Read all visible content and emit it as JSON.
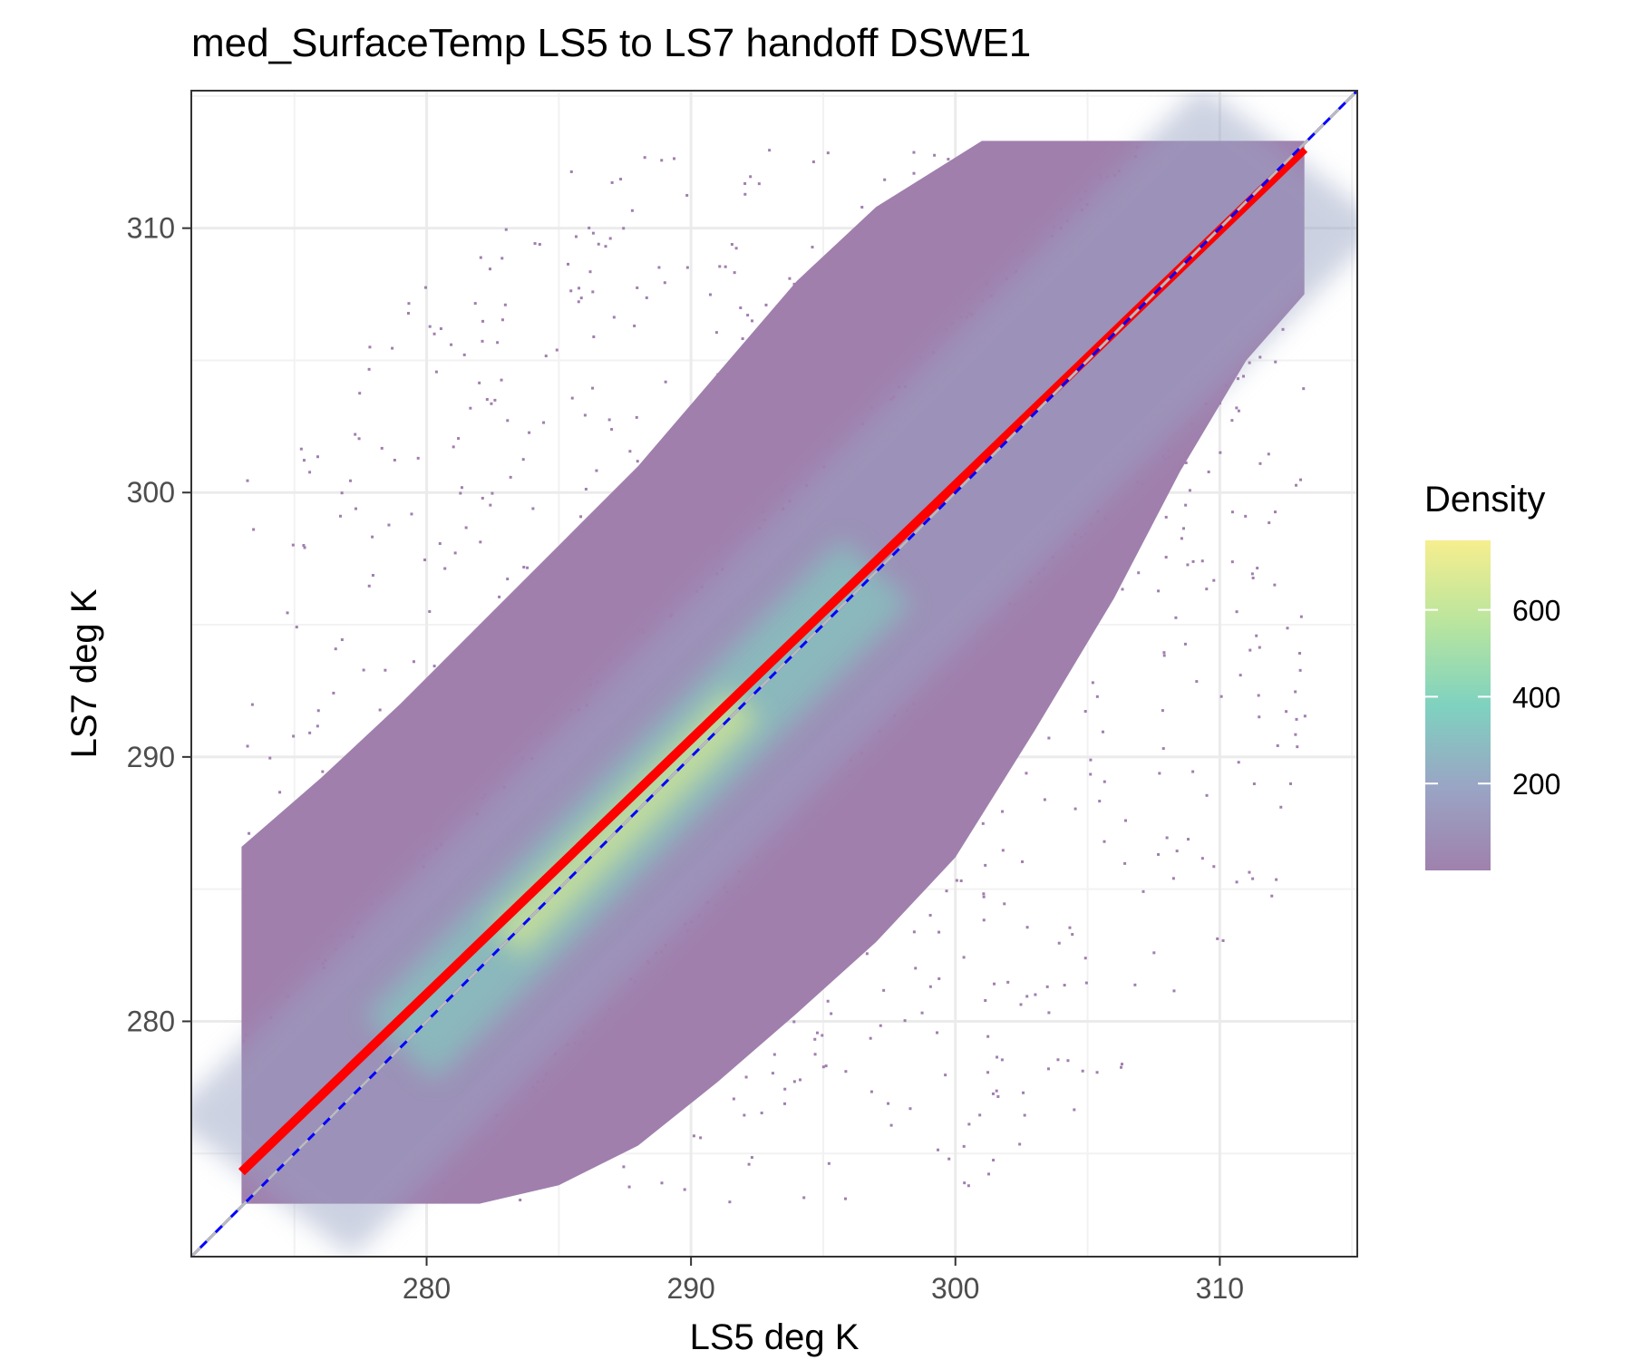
{
  "chart_data": {
    "type": "heatmap",
    "title": "med_SurfaceTemp LS5 to LS7 handoff DSWE1",
    "xlabel": "LS5 deg K",
    "ylabel": "LS7 deg K",
    "xlim": [
      271.1,
      315.2
    ],
    "ylim": [
      271.1,
      315.2
    ],
    "x_ticks": [
      280,
      290,
      300,
      310
    ],
    "y_ticks": [
      280,
      290,
      300,
      310
    ],
    "grid": true,
    "point_extent": {
      "x": [
        273,
        313.2
      ],
      "y": [
        273.1,
        313.3
      ]
    },
    "legend": {
      "title": "Density",
      "position": "right",
      "ticks": [
        200,
        400,
        600
      ],
      "range": [
        0,
        760
      ],
      "colors": [
        "#9f81ad",
        "#9aa4c4",
        "#7fd2c0",
        "#b9e59e",
        "#f6ee8e"
      ]
    },
    "series": [
      {
        "kind": "fit",
        "color": "#ff0000",
        "points": [
          [
            273,
            274.3
          ],
          [
            313.2,
            313.0
          ]
        ]
      },
      {
        "kind": "reference",
        "color": "#0000ff",
        "points": [
          [
            271.1,
            271.1
          ],
          [
            315.2,
            315.2
          ]
        ]
      },
      {
        "kind": "reference",
        "color": "#bbbbbb",
        "style": "dashed",
        "points": [
          [
            271.1,
            271.1
          ],
          [
            315.2,
            315.2
          ]
        ]
      }
    ]
  }
}
